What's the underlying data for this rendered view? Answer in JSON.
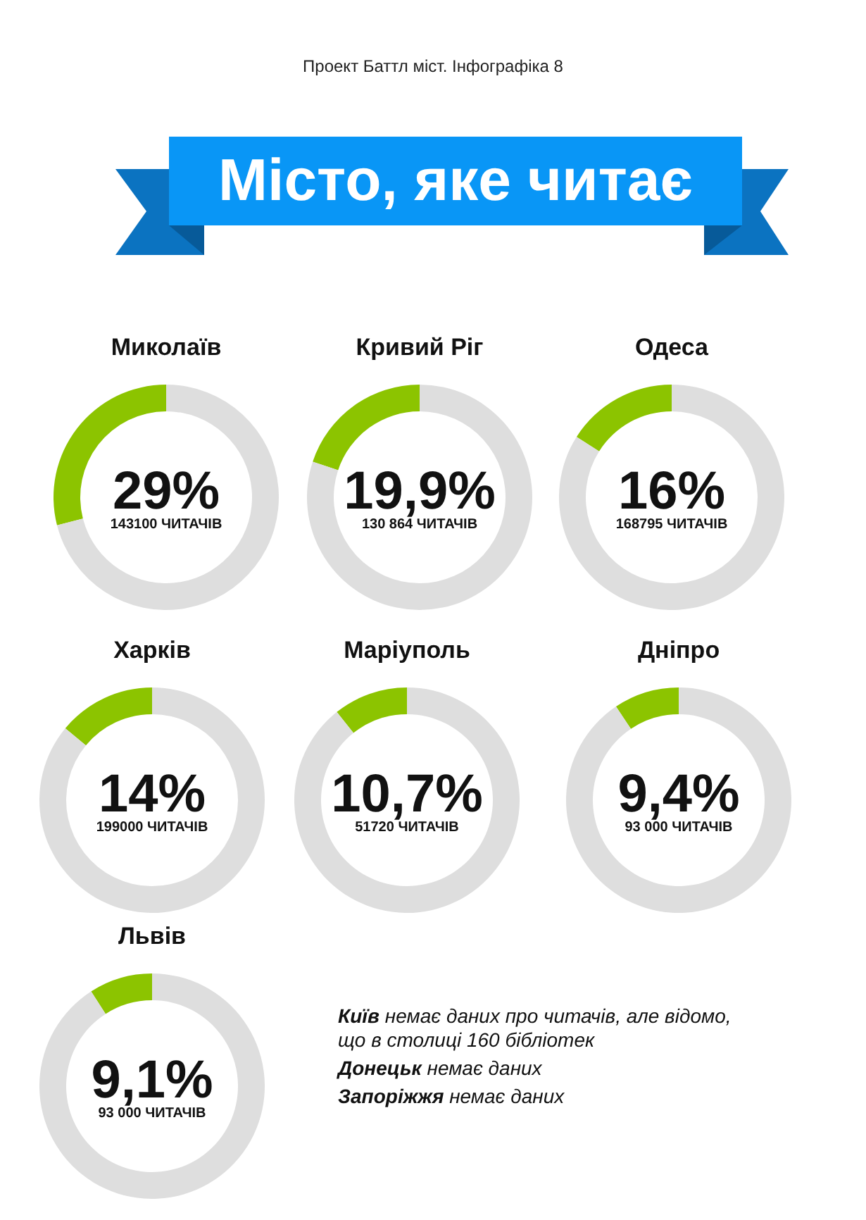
{
  "chart_data": [
    {
      "type": "other",
      "title": "Місто, яке читає",
      "subtitle": "Проект Баттл міст. Інфографіка 8"
    },
    {
      "type": "donut",
      "title": "Миколаїв",
      "categories": [
        null,
        null
      ],
      "values": [
        29,
        71
      ],
      "colors": [
        "#8cc400",
        "#dedede"
      ],
      "value_labels": [
        "29%",
        null
      ],
      "annotations": [
        "143100 ЧИТАЧІВ"
      ]
    },
    {
      "type": "donut",
      "title": "Кривий Ріг",
      "categories": [
        null,
        null
      ],
      "values": [
        19.9,
        80.1
      ],
      "colors": [
        "#8cc400",
        "#dedede"
      ],
      "value_labels": [
        "19,9%",
        null
      ],
      "annotations": [
        "130 864 ЧИТАЧІВ"
      ]
    },
    {
      "type": "donut",
      "title": "Одеса",
      "categories": [
        null,
        null
      ],
      "values": [
        16,
        84
      ],
      "colors": [
        "#8cc400",
        "#dedede"
      ],
      "value_labels": [
        "16%",
        null
      ],
      "annotations": [
        "168795 ЧИТАЧІВ"
      ]
    },
    {
      "type": "donut",
      "title": "Харків",
      "categories": [
        null,
        null
      ],
      "values": [
        14,
        86
      ],
      "colors": [
        "#8cc400",
        "#dedede"
      ],
      "value_labels": [
        "14%",
        null
      ],
      "annotations": [
        "199000 ЧИТАЧІВ"
      ]
    },
    {
      "type": "donut",
      "title": "Маріуполь",
      "categories": [
        null,
        null
      ],
      "values": [
        10.7,
        89.3
      ],
      "colors": [
        "#8cc400",
        "#dedede"
      ],
      "value_labels": [
        "10,7%",
        null
      ],
      "annotations": [
        "51720 ЧИТАЧІВ"
      ]
    },
    {
      "type": "donut",
      "title": "Дніпро",
      "categories": [
        null,
        null
      ],
      "values": [
        9.4,
        90.6
      ],
      "colors": [
        "#8cc400",
        "#dedede"
      ],
      "value_labels": [
        "9,4%",
        null
      ],
      "annotations": [
        "93 000 ЧИТАЧІВ"
      ]
    },
    {
      "type": "donut",
      "title": "Львів",
      "categories": [
        null,
        null
      ],
      "values": [
        9.1,
        90.9
      ],
      "colors": [
        "#8cc400",
        "#dedede"
      ],
      "value_labels": [
        "9,1%",
        null
      ],
      "annotations": [
        "93 000 ЧИТАЧІВ"
      ]
    },
    {
      "type": "other",
      "annotations": [
        "Київ немає даних про читачів, але відомо, що в столиці 160 бібліотек",
        "Донецьк немає даних",
        "Запоріжжя немає даних"
      ]
    }
  ]
}
